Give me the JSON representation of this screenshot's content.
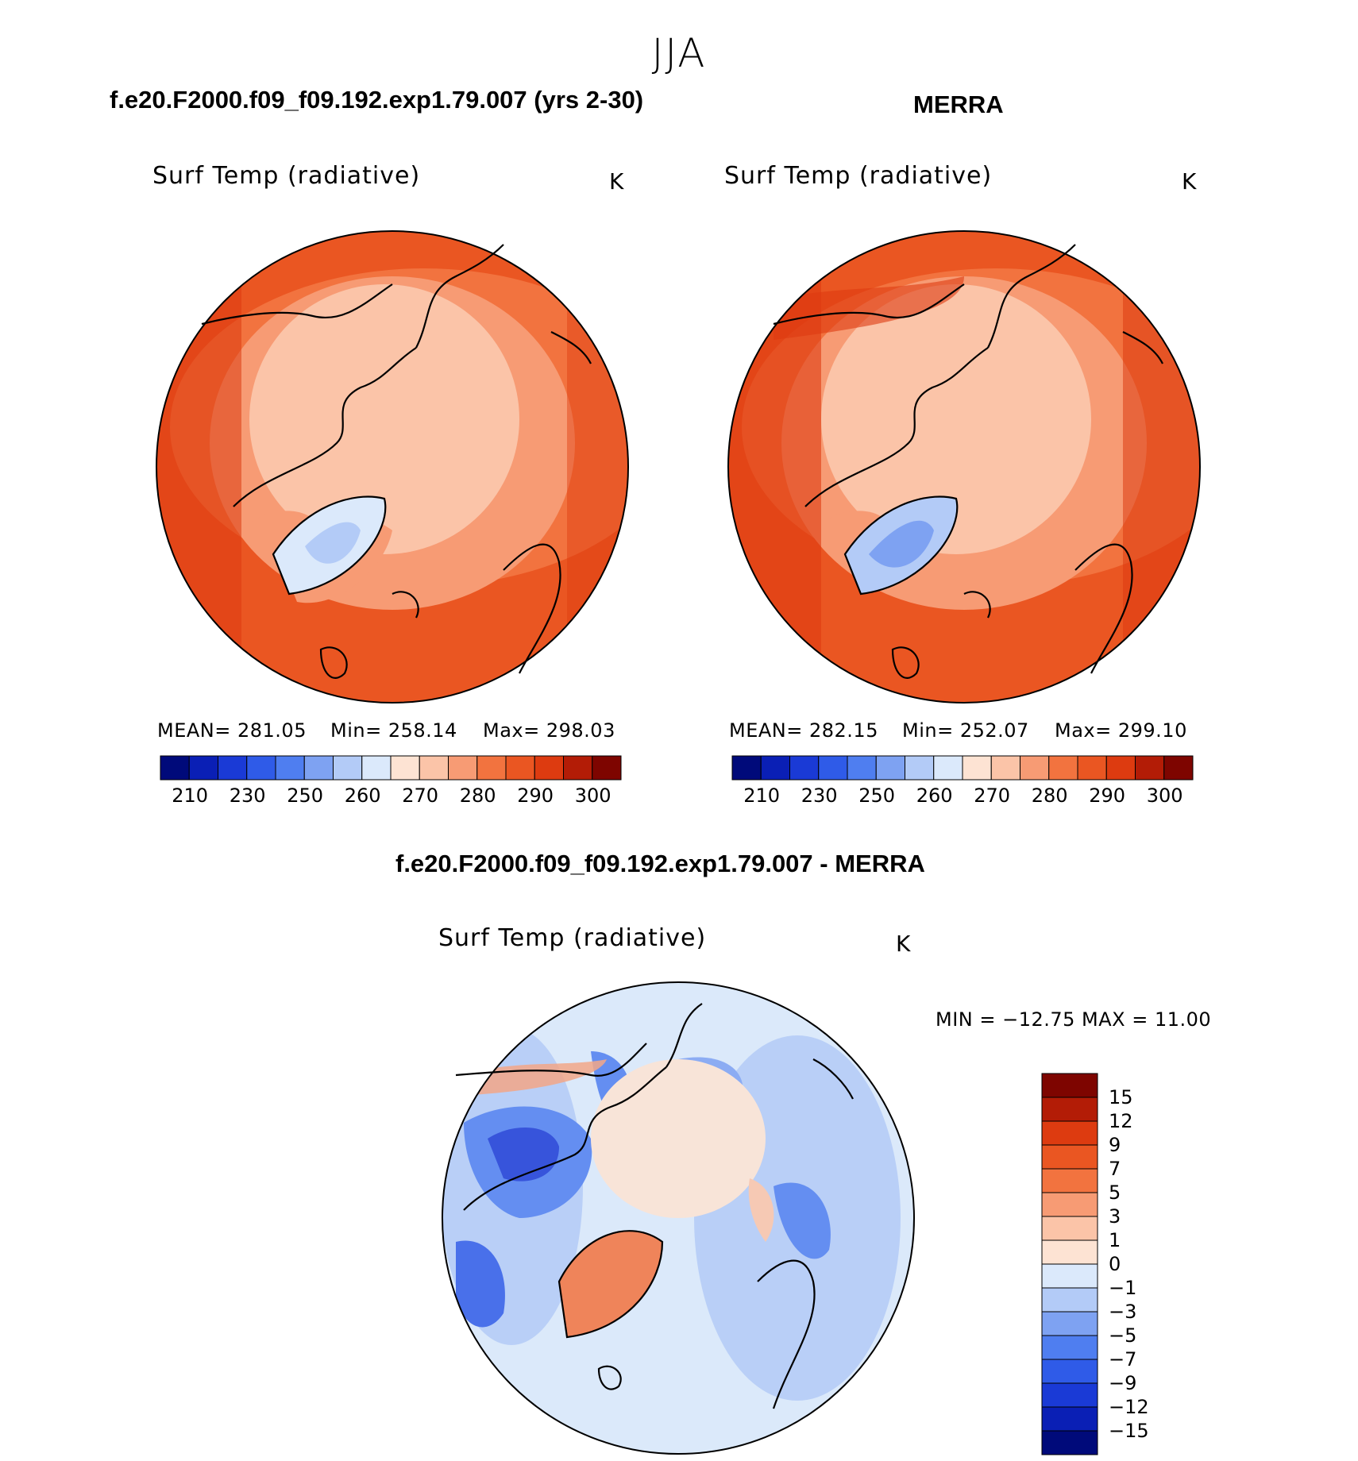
{
  "main_title": "JJA",
  "panels": [
    {
      "case_title": "f.e20.F2000.f09_f09.192.exp1.79.007 (yrs 2-30)",
      "variable": "Surf Temp (radiative)",
      "units": "K",
      "stats": {
        "mean": "MEAN= 281.05",
        "min": "Min= 258.14",
        "max": "Max= 298.03"
      },
      "colorbar_ticks": [
        "210",
        "230",
        "250",
        "260",
        "270",
        "280",
        "290",
        "300"
      ]
    },
    {
      "case_title": "MERRA",
      "variable": "Surf Temp (radiative)",
      "units": "K",
      "stats": {
        "mean": "MEAN= 282.15",
        "min": "Min= 252.07",
        "max": "Max= 299.10"
      },
      "colorbar_ticks": [
        "210",
        "230",
        "250",
        "260",
        "270",
        "280",
        "290",
        "300"
      ]
    },
    {
      "case_title": "f.e20.F2000.f09_f09.192.exp1.79.007 - MERRA",
      "variable": "Surf Temp (radiative)",
      "units": "K",
      "stats": {
        "minmax": "MIN = −12.75 MAX =    11.00"
      },
      "colorbar_ticks": [
        "15",
        "12",
        "9",
        "7",
        "5",
        "3",
        "1",
        "0",
        "−1",
        "−3",
        "−5",
        "−7",
        "−9",
        "−12",
        "−15"
      ]
    }
  ],
  "colors": {
    "abs_scale": [
      "#000a7a",
      "#0a1fb5",
      "#1a3ad6",
      "#2f5be8",
      "#4f7ef0",
      "#7ea2f2",
      "#b3cbf7",
      "#dbe9fb",
      "#fde3d3",
      "#fbc4a8",
      "#f79b74",
      "#f2733f",
      "#ea5622",
      "#dd3b10",
      "#b31c06",
      "#7e0500"
    ],
    "diff_scale": [
      "#7e0500",
      "#b31c06",
      "#dd3b10",
      "#ea5622",
      "#f2733f",
      "#f79b74",
      "#fbc4a8",
      "#fde3d3",
      "#dbe9fb",
      "#b3cbf7",
      "#7ea2f2",
      "#4f7ef0",
      "#2f5be8",
      "#1a3ad6",
      "#0a1fb5",
      "#000a7a"
    ]
  }
}
